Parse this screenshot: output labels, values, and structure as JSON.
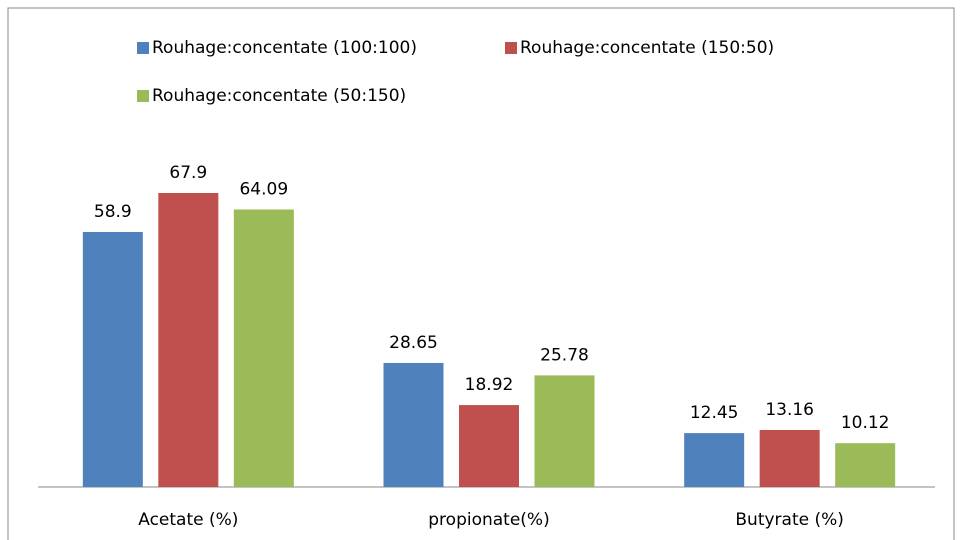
{
  "chart_data": {
    "type": "bar",
    "categories": [
      "Acetate (%)",
      "propionate(%)",
      "Butyrate (%)"
    ],
    "series": [
      {
        "name": "Rouhage:concentate (100:100)",
        "color": "#4f81bd",
        "values": [
          58.9,
          28.65,
          12.45
        ]
      },
      {
        "name": "Rouhage:concentate (150:50)",
        "color": "#c0504d",
        "values": [
          67.9,
          18.92,
          13.16
        ]
      },
      {
        "name": "Rouhage:concentate (50:150)",
        "color": "#9bbb59",
        "values": [
          64.09,
          25.78,
          10.12
        ]
      }
    ],
    "legend": "top"
  }
}
